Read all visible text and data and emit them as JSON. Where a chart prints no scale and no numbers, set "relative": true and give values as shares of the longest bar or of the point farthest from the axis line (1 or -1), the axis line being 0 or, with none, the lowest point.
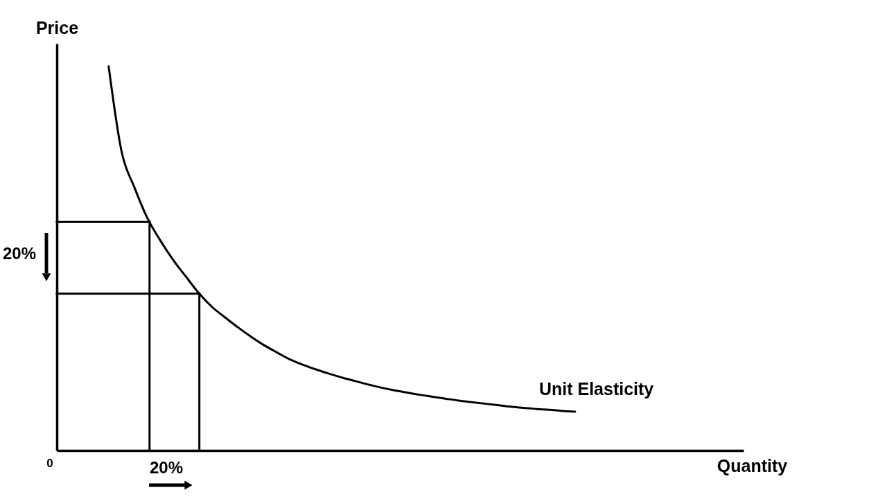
{
  "chart_data": {
    "type": "line",
    "relative": true,
    "xlabel": "Quantity",
    "ylabel": "Price",
    "legend": false,
    "marker": "none",
    "line_style": "solid",
    "categories": [
      null,
      null,
      null,
      null,
      null,
      null,
      null,
      null,
      null,
      null,
      null,
      null,
      null,
      null,
      null,
      null,
      null,
      null,
      null,
      null,
      null,
      null,
      null,
      null,
      null,
      null,
      null,
      null,
      null,
      null,
      null,
      null,
      null,
      null,
      null,
      null,
      null,
      null,
      null,
      null,
      null,
      null,
      null,
      null,
      null,
      null,
      null,
      null,
      null,
      null,
      null,
      null,
      null,
      null
    ],
    "series": [
      {
        "name": "Unit Elasticity",
        "color": "#000000",
        "values": [
          null,
          null,
          null,
          null,
          1,
          0.778,
          0.684,
          0.604,
          0.546,
          0.495,
          0.451,
          0.408,
          0.373,
          0.346,
          0.32,
          0.296,
          0.274,
          0.255,
          0.237,
          0.223,
          0.211,
          0.2,
          0.19,
          0.181,
          0.172,
          0.164,
          0.157,
          0.151,
          0.145,
          0.14,
          0.135,
          0.13,
          0.126,
          0.122,
          0.118,
          0.114,
          0.111,
          0.108,
          0.106,
          0.103,
          0.101,
          null,
          null,
          null,
          null,
          null,
          null,
          null,
          null,
          null,
          null,
          null,
          null,
          null
        ]
      }
    ],
    "ref_lines": [
      {
        "axis": "y",
        "value": 0.595,
        "color": "#000000"
      },
      {
        "axis": "y",
        "value": 0.408,
        "color": "#000000"
      }
    ],
    "annotations": [
      "20%",
      "20%",
      "0"
    ]
  }
}
